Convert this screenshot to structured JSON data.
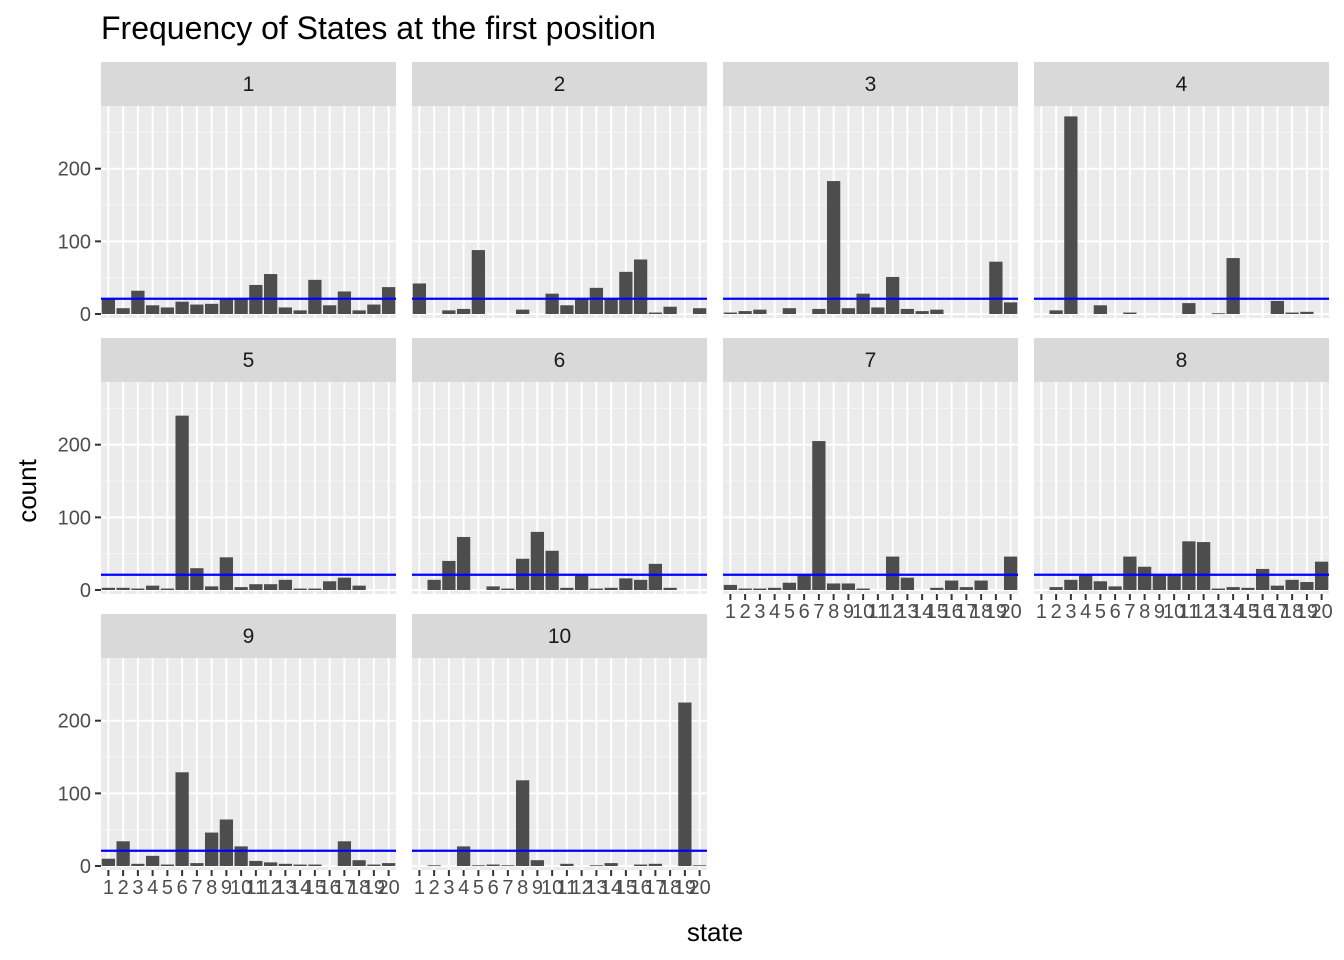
{
  "chart_data": {
    "type": "bar",
    "title": "Frequency of States at the first position",
    "xlabel": "state",
    "ylabel": "count",
    "ylim": [
      0,
      290
    ],
    "y_ticks": [
      0,
      100,
      200
    ],
    "categories": [
      "1",
      "2",
      "3",
      "4",
      "5",
      "6",
      "7",
      "8",
      "9",
      "10",
      "11",
      "12",
      "13",
      "14",
      "15",
      "16",
      "17",
      "18",
      "19",
      "20"
    ],
    "reference_line": {
      "value": 21,
      "color": "#0000ff"
    },
    "bar_color": "#4d4d4d",
    "panel_background": "#ebebeb",
    "strip_background": "#d9d9d9",
    "grid": true,
    "panels": [
      {
        "label": "1",
        "values": [
          20,
          8,
          32,
          12,
          9,
          17,
          13,
          14,
          21,
          21,
          40,
          55,
          9,
          5,
          47,
          12,
          31,
          5,
          13,
          37
        ]
      },
      {
        "label": "2",
        "values": [
          42,
          0,
          5,
          7,
          88,
          0,
          0,
          6,
          0,
          28,
          12,
          20,
          36,
          22,
          58,
          75,
          2,
          10,
          0,
          8
        ]
      },
      {
        "label": "3",
        "values": [
          2,
          4,
          6,
          0,
          8,
          0,
          7,
          183,
          8,
          28,
          9,
          51,
          7,
          4,
          6,
          0,
          0,
          0,
          72,
          16
        ]
      },
      {
        "label": "4",
        "values": [
          0,
          5,
          272,
          0,
          12,
          0,
          2,
          0,
          0,
          0,
          15,
          0,
          1,
          77,
          0,
          0,
          18,
          2,
          3,
          0
        ]
      },
      {
        "label": "5",
        "values": [
          3,
          3,
          2,
          6,
          2,
          240,
          30,
          5,
          45,
          4,
          8,
          8,
          14,
          2,
          2,
          12,
          17,
          6,
          0,
          0
        ]
      },
      {
        "label": "6",
        "values": [
          0,
          14,
          40,
          73,
          0,
          5,
          2,
          43,
          80,
          54,
          3,
          20,
          2,
          3,
          16,
          14,
          36,
          3,
          0,
          0
        ]
      },
      {
        "label": "7",
        "values": [
          7,
          2,
          2,
          3,
          10,
          22,
          205,
          9,
          9,
          2,
          0,
          46,
          17,
          0,
          3,
          13,
          4,
          13,
          0,
          46
        ]
      },
      {
        "label": "8",
        "values": [
          0,
          4,
          14,
          21,
          12,
          5,
          46,
          32,
          21,
          21,
          67,
          66,
          2,
          4,
          3,
          29,
          6,
          14,
          11,
          39
        ]
      },
      {
        "label": "9",
        "values": [
          10,
          34,
          3,
          14,
          2,
          129,
          4,
          46,
          64,
          27,
          7,
          5,
          3,
          2,
          2,
          0,
          34,
          8,
          2,
          4
        ]
      },
      {
        "label": "10",
        "values": [
          0,
          1,
          0,
          27,
          1,
          2,
          1,
          118,
          8,
          0,
          3,
          0,
          1,
          4,
          0,
          2,
          3,
          0,
          225,
          1
        ]
      }
    ]
  }
}
